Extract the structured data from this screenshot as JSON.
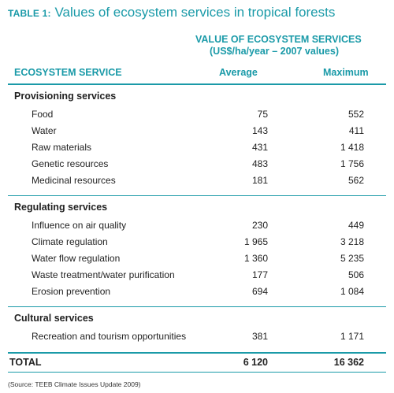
{
  "title": {
    "label": "TABLE 1:",
    "text": "Values of ecosystem services in tropical forests"
  },
  "header": {
    "group_line1": "VALUE OF ECOSYSTEM SERVICES",
    "group_line2": "(US$/ha/year – 2007 values)",
    "col_service": "ECOSYSTEM SERVICE",
    "col_avg": "Average",
    "col_max": "Maximum"
  },
  "sections": [
    {
      "name": "Provisioning services",
      "rows": [
        {
          "service": "Food",
          "avg": "75",
          "max": "552"
        },
        {
          "service": "Water",
          "avg": "143",
          "max": "411"
        },
        {
          "service": "Raw materials",
          "avg": "431",
          "max": "1 418"
        },
        {
          "service": "Genetic resources",
          "avg": "483",
          "max": "1 756"
        },
        {
          "service": "Medicinal resources",
          "avg": "181",
          "max": "562"
        }
      ]
    },
    {
      "name": "Regulating services",
      "rows": [
        {
          "service": "Influence on air quality",
          "avg": "230",
          "max": "449"
        },
        {
          "service": "Climate regulation",
          "avg": "1 965",
          "max": "3 218"
        },
        {
          "service": "Water flow regulation",
          "avg": "1 360",
          "max": "5 235"
        },
        {
          "service": "Waste treatment/water purification",
          "avg": "177",
          "max": "506"
        },
        {
          "service": "Erosion prevention",
          "avg": "694",
          "max": "1 084"
        }
      ]
    },
    {
      "name": "Cultural services",
      "rows": [
        {
          "service": "Recreation and tourism opportunities",
          "avg": "381",
          "max": "1 171"
        }
      ]
    }
  ],
  "total": {
    "label": "TOTAL",
    "avg": "6 120",
    "max": "16 362"
  },
  "source": "(Source: TEEB Climate Issues Update 2009)",
  "colors": {
    "accent": "#1a9aa8",
    "text": "#222222"
  }
}
